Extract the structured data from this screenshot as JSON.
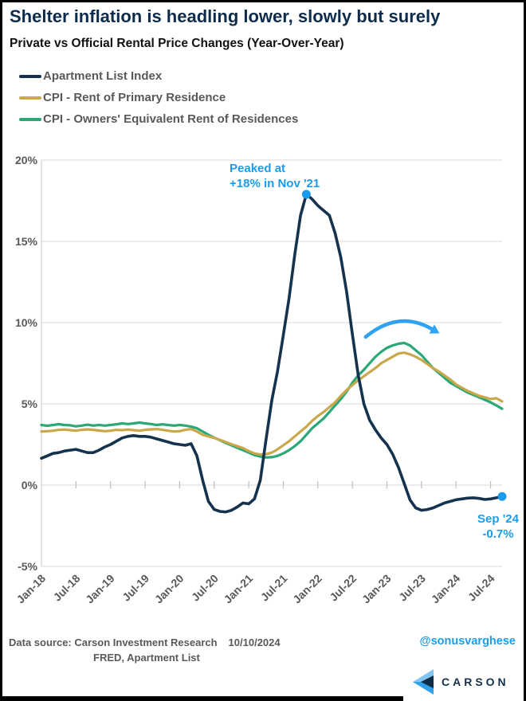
{
  "header": {
    "title": "Shelter inflation is headling lower, slowly but surely",
    "subtitle": "Private vs Official Rental Price Changes (Year-Over-Year)"
  },
  "legend": [
    {
      "label": "Apartment List Index",
      "color": "#15334E"
    },
    {
      "label": "CPI - Rent of Primary Residence",
      "color": "#C9A84C"
    },
    {
      "label": "CPI - Owners' Equivalent Rent of Residences",
      "color": "#2AA876"
    }
  ],
  "chart_data": {
    "type": "line",
    "x_unit": "month",
    "n_months": 81,
    "x_start": "Jan-18",
    "x_end": "Sep-24",
    "ylim": [
      -5,
      20
    ],
    "grid": "horizontal",
    "yticks": [
      {
        "v": 20,
        "label": "20%"
      },
      {
        "v": 15,
        "label": "15%"
      },
      {
        "v": 10,
        "label": "10%"
      },
      {
        "v": 5,
        "label": "5%"
      },
      {
        "v": 0,
        "label": "0%"
      },
      {
        "v": -5,
        "label": "-5%"
      }
    ],
    "xticks": [
      {
        "i": 0,
        "label": "Jan-18"
      },
      {
        "i": 6,
        "label": "Jul-18"
      },
      {
        "i": 12,
        "label": "Jan-19"
      },
      {
        "i": 18,
        "label": "Jul-19"
      },
      {
        "i": 24,
        "label": "Jan-20"
      },
      {
        "i": 30,
        "label": "Jul-20"
      },
      {
        "i": 36,
        "label": "Jan-21"
      },
      {
        "i": 42,
        "label": "Jul-21"
      },
      {
        "i": 48,
        "label": "Jan-22"
      },
      {
        "i": 54,
        "label": "Jul-22"
      },
      {
        "i": 60,
        "label": "Jan-23"
      },
      {
        "i": 66,
        "label": "Jul-23"
      },
      {
        "i": 72,
        "label": "Jan-24"
      },
      {
        "i": 78,
        "label": "Jul-24"
      }
    ],
    "series": [
      {
        "name": "CPI - Owners' Equivalent Rent of Residences",
        "color": "#2AA876",
        "width": 3.2,
        "values": [
          3.7,
          3.65,
          3.7,
          3.75,
          3.7,
          3.68,
          3.62,
          3.66,
          3.72,
          3.66,
          3.7,
          3.66,
          3.7,
          3.74,
          3.8,
          3.76,
          3.8,
          3.85,
          3.8,
          3.76,
          3.7,
          3.74,
          3.7,
          3.66,
          3.7,
          3.66,
          3.6,
          3.5,
          3.3,
          3.1,
          2.92,
          2.76,
          2.6,
          2.45,
          2.3,
          2.15,
          2.0,
          1.85,
          1.76,
          1.7,
          1.72,
          1.8,
          1.95,
          2.15,
          2.4,
          2.7,
          3.1,
          3.5,
          3.8,
          4.1,
          4.5,
          4.9,
          5.3,
          5.75,
          6.3,
          6.75,
          7.1,
          7.5,
          7.9,
          8.2,
          8.45,
          8.6,
          8.7,
          8.75,
          8.6,
          8.3,
          8.0,
          7.6,
          7.2,
          6.9,
          6.6,
          6.3,
          6.1,
          5.9,
          5.7,
          5.55,
          5.4,
          5.25,
          5.1,
          4.9,
          4.7
        ]
      },
      {
        "name": "CPI - Rent of Primary Residence",
        "color": "#C9A84C",
        "width": 3.2,
        "values": [
          3.3,
          3.32,
          3.35,
          3.4,
          3.42,
          3.38,
          3.35,
          3.4,
          3.43,
          3.4,
          3.36,
          3.32,
          3.35,
          3.4,
          3.38,
          3.42,
          3.38,
          3.35,
          3.4,
          3.43,
          3.45,
          3.4,
          3.35,
          3.3,
          3.32,
          3.4,
          3.45,
          3.3,
          3.1,
          3.0,
          2.9,
          2.78,
          2.65,
          2.52,
          2.4,
          2.28,
          2.1,
          1.95,
          1.88,
          1.9,
          2.0,
          2.2,
          2.45,
          2.7,
          3.0,
          3.3,
          3.6,
          3.95,
          4.25,
          4.5,
          4.8,
          5.1,
          5.5,
          5.85,
          6.15,
          6.45,
          6.7,
          6.95,
          7.2,
          7.5,
          7.7,
          7.9,
          8.1,
          8.15,
          8.05,
          7.9,
          7.7,
          7.45,
          7.2,
          7.0,
          6.75,
          6.5,
          6.2,
          6.0,
          5.8,
          5.65,
          5.5,
          5.4,
          5.3,
          5.35,
          5.15
        ]
      },
      {
        "name": "Apartment List Index",
        "color": "#15334E",
        "width": 3.6,
        "values": [
          1.65,
          1.8,
          1.95,
          2.0,
          2.1,
          2.15,
          2.2,
          2.1,
          2.0,
          2.0,
          2.15,
          2.35,
          2.5,
          2.7,
          2.9,
          3.0,
          3.05,
          3.0,
          3.0,
          2.95,
          2.85,
          2.75,
          2.65,
          2.55,
          2.5,
          2.45,
          2.55,
          1.8,
          0.3,
          -1.0,
          -1.5,
          -1.62,
          -1.65,
          -1.55,
          -1.35,
          -1.1,
          -1.15,
          -0.85,
          0.3,
          2.8,
          5.2,
          7.0,
          9.2,
          11.5,
          14.2,
          16.6,
          17.9,
          17.6,
          17.2,
          16.9,
          16.6,
          15.5,
          14.0,
          11.9,
          9.3,
          6.8,
          5.0,
          4.0,
          3.4,
          2.9,
          2.5,
          1.9,
          1.1,
          0.1,
          -0.9,
          -1.4,
          -1.55,
          -1.5,
          -1.4,
          -1.25,
          -1.1,
          -1.0,
          -0.9,
          -0.85,
          -0.8,
          -0.78,
          -0.82,
          -0.88,
          -0.85,
          -0.78,
          -0.7
        ]
      }
    ]
  },
  "annotations": {
    "peak": {
      "line1": "Peaked at",
      "line2": "+18% in Nov '21",
      "month_index": 46,
      "value": 17.9,
      "color": "#1B9CEB"
    },
    "latest": {
      "line1": "Sep '24",
      "line2": "-0.7%",
      "month_index": 80,
      "value": -0.7,
      "color": "#1B9CEB"
    },
    "arc_arrow": {
      "description": "clockwise arrow over CPI shelter peak",
      "color": "#2FA3EF"
    }
  },
  "footer": {
    "source_label": "Data source: Carson Investment Research",
    "source_line2": "FRED, Apartment List",
    "date": "10/10/2024",
    "handle": "@sonusvarghese",
    "brand": "CARSON"
  }
}
